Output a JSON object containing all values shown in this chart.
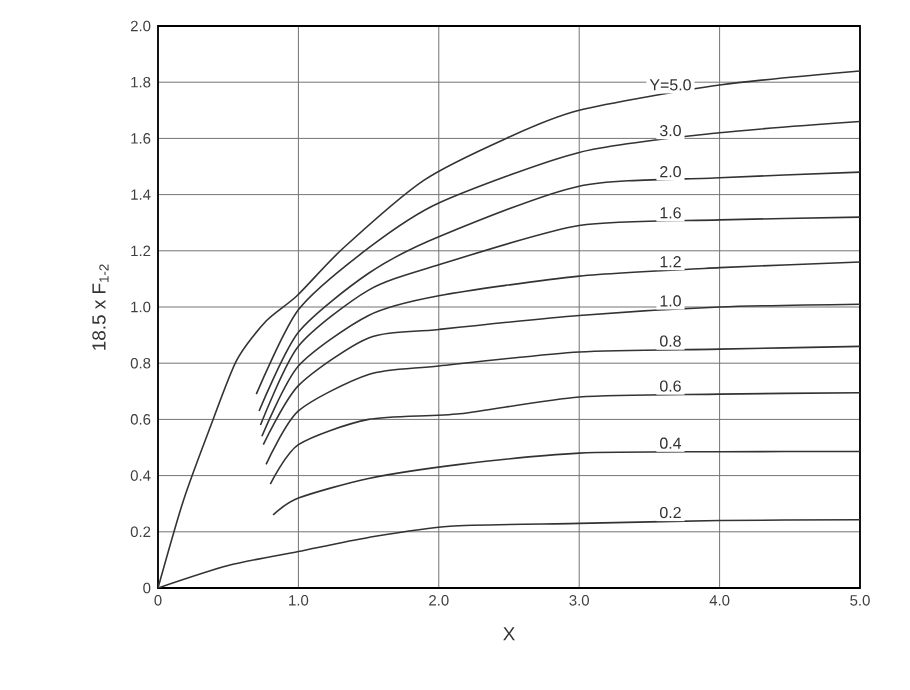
{
  "chart_data": {
    "type": "line",
    "xlabel": "X",
    "ylabel": "18.5 x F$_{1-2}$",
    "xlim": [
      0,
      5
    ],
    "ylim": [
      0,
      2
    ],
    "xticks": [
      0,
      {
        "value": 1,
        "label": "1.0"
      },
      {
        "value": 2,
        "label": "2.0"
      },
      {
        "value": 3,
        "label": "3.0"
      },
      {
        "value": 4,
        "label": "4.0"
      },
      {
        "value": 5,
        "label": "5.0"
      }
    ],
    "yticks": [
      0,
      0.2,
      0.4,
      0.6,
      0.8,
      {
        "value": 1,
        "label": "1.0"
      },
      1.2,
      1.4,
      1.6,
      1.8,
      {
        "value": 2,
        "label": "2.0"
      }
    ],
    "grid": true,
    "marker": "none",
    "line_style": "solid",
    "series": [
      {
        "name": "Y=5.0",
        "color": "#333333",
        "x": [
          0,
          0.18,
          0.37,
          0.56,
          0.77,
          0.99,
          1.32,
          1.89,
          2.48,
          3,
          4,
          5
        ],
        "values": [
          0,
          0.31,
          0.57,
          0.81,
          0.95,
          1.04,
          1.21,
          1.45,
          1.6,
          1.7,
          1.79,
          1.84
        ]
      },
      {
        "name": "3.0",
        "color": "#333333",
        "x": [
          0.7,
          1,
          1.5,
          2,
          3,
          4,
          5
        ],
        "values": [
          0.69,
          0.99,
          1.21,
          1.37,
          1.55,
          1.62,
          1.66
        ]
      },
      {
        "name": "2.0",
        "color": "#333333",
        "x": [
          0.72,
          1,
          1.5,
          2,
          3,
          4,
          5
        ],
        "values": [
          0.63,
          0.91,
          1.12,
          1.25,
          1.43,
          1.46,
          1.48
        ]
      },
      {
        "name": "1.6",
        "color": "#333333",
        "x": [
          0.73,
          1,
          1.5,
          2,
          3,
          4,
          5
        ],
        "values": [
          0.58,
          0.86,
          1.06,
          1.15,
          1.29,
          1.31,
          1.32
        ]
      },
      {
        "name": "1.2",
        "color": "#333333",
        "x": [
          0.74,
          1,
          1.5,
          2,
          3,
          4,
          5
        ],
        "values": [
          0.54,
          0.79,
          0.97,
          1.04,
          1.11,
          1.14,
          1.16
        ]
      },
      {
        "name": "1.0",
        "color": "#333333",
        "x": [
          0.75,
          1,
          1.5,
          2,
          3,
          4,
          5
        ],
        "values": [
          0.51,
          0.72,
          0.89,
          0.92,
          0.97,
          1.0,
          1.01
        ]
      },
      {
        "name": "0.8",
        "color": "#333333",
        "x": [
          0.77,
          1,
          1.5,
          2,
          3,
          4,
          5
        ],
        "values": [
          0.44,
          0.63,
          0.76,
          0.79,
          0.84,
          0.85,
          0.86
        ]
      },
      {
        "name": "0.6",
        "color": "#333333",
        "x": [
          0.8,
          1,
          1.5,
          2.15,
          3,
          4,
          5
        ],
        "values": [
          0.37,
          0.51,
          0.6,
          0.62,
          0.68,
          0.69,
          0.695
        ]
      },
      {
        "name": "0.4",
        "color": "#333333",
        "x": [
          0.82,
          1,
          1.5,
          2.15,
          3,
          4,
          5
        ],
        "values": [
          0.26,
          0.32,
          0.39,
          0.44,
          0.48,
          0.485,
          0.486
        ]
      },
      {
        "name": "0.2",
        "color": "#333333",
        "x": [
          0,
          0.5,
          1,
          1.5,
          2.08,
          3,
          4,
          5
        ],
        "values": [
          0,
          0.08,
          0.13,
          0.18,
          0.22,
          0.23,
          0.24,
          0.243
        ]
      }
    ]
  }
}
